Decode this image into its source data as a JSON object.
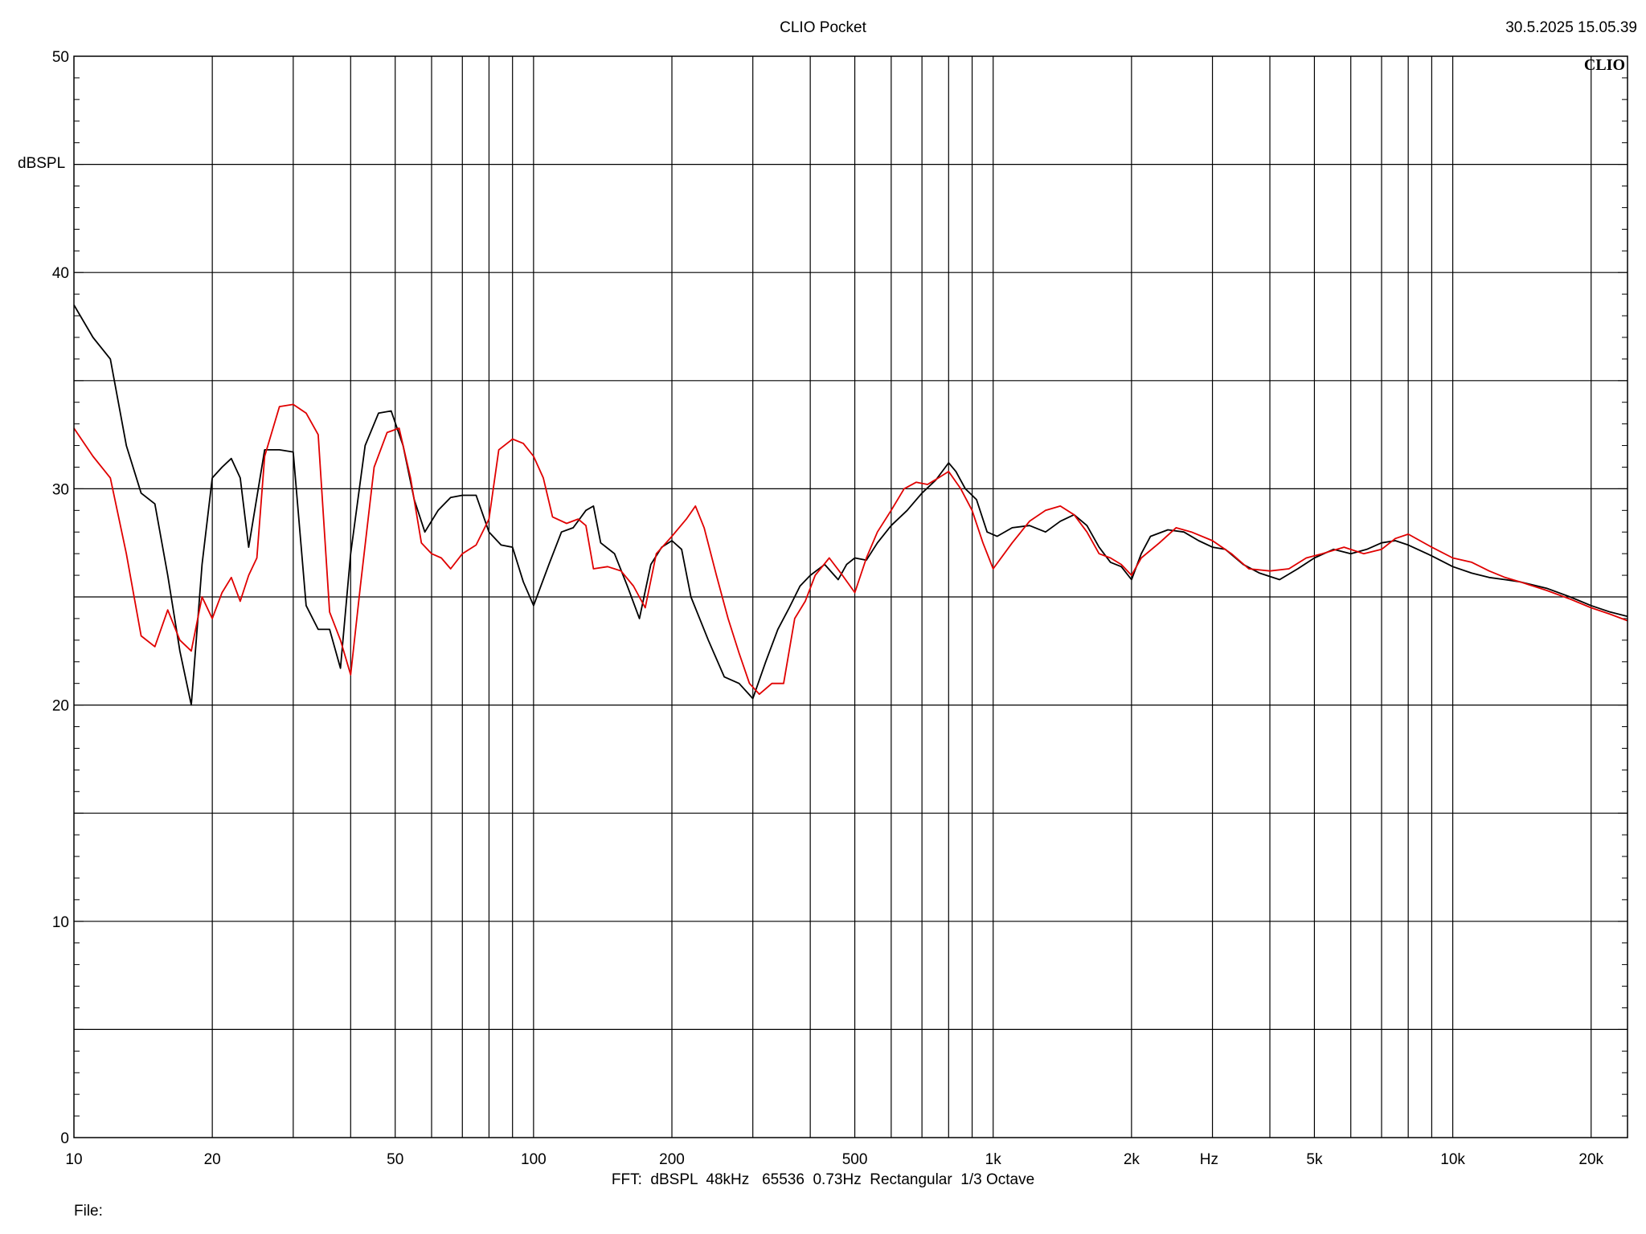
{
  "header": {
    "title": "CLIO Pocket",
    "timestamp": "30.5.2025 15.05.39",
    "logo": "CLIO"
  },
  "footer": {
    "settings": "FFT:  dBSPL  48kHz   65536  0.73Hz  Rectangular  1/3 Octave",
    "file_label": "File:"
  },
  "chart_data": {
    "type": "line",
    "title": "CLIO Pocket",
    "xlabel": "Hz",
    "ylabel": "dBSPL",
    "xscale": "log",
    "xlim": [
      10,
      24000
    ],
    "ylim": [
      0,
      50
    ],
    "grid": true,
    "x_ticks": [
      {
        "value": 10,
        "label": "10"
      },
      {
        "value": 20,
        "label": "20"
      },
      {
        "value": 50,
        "label": "50"
      },
      {
        "value": 100,
        "label": "100"
      },
      {
        "value": 200,
        "label": "200"
      },
      {
        "value": 500,
        "label": "500"
      },
      {
        "value": 1000,
        "label": "1k"
      },
      {
        "value": 2000,
        "label": "2k"
      },
      {
        "value": 5000,
        "label": "5k"
      },
      {
        "value": 10000,
        "label": "10k"
      },
      {
        "value": 20000,
        "label": "20k"
      }
    ],
    "y_ticks": [
      {
        "value": 0,
        "label": "0"
      },
      {
        "value": 10,
        "label": "10"
      },
      {
        "value": 20,
        "label": "20"
      },
      {
        "value": 30,
        "label": "30"
      },
      {
        "value": 40,
        "label": "40"
      },
      {
        "value": 50,
        "label": "50"
      }
    ],
    "series": [
      {
        "color": "#000000",
        "points": [
          [
            10,
            38.5
          ],
          [
            11,
            37.0
          ],
          [
            12,
            36.0
          ],
          [
            13,
            32.0
          ],
          [
            14,
            29.8
          ],
          [
            15,
            29.3
          ],
          [
            16,
            26.0
          ],
          [
            17,
            22.5
          ],
          [
            18,
            20.0
          ],
          [
            19,
            26.5
          ],
          [
            20,
            30.5
          ],
          [
            21,
            31.0
          ],
          [
            22,
            31.4
          ],
          [
            23,
            30.5
          ],
          [
            24,
            27.3
          ],
          [
            26,
            31.8
          ],
          [
            28,
            31.8
          ],
          [
            30,
            31.7
          ],
          [
            32,
            24.6
          ],
          [
            34,
            23.5
          ],
          [
            36,
            23.5
          ],
          [
            38,
            21.7
          ],
          [
            40,
            27.0
          ],
          [
            43,
            32.0
          ],
          [
            46,
            33.5
          ],
          [
            49,
            33.6
          ],
          [
            52,
            32.0
          ],
          [
            55,
            29.5
          ],
          [
            58,
            28.0
          ],
          [
            62,
            29.0
          ],
          [
            66,
            29.6
          ],
          [
            70,
            29.7
          ],
          [
            75,
            29.7
          ],
          [
            80,
            28.0
          ],
          [
            85,
            27.4
          ],
          [
            90,
            27.3
          ],
          [
            95,
            25.7
          ],
          [
            100,
            24.6
          ],
          [
            108,
            26.5
          ],
          [
            115,
            28.0
          ],
          [
            122,
            28.2
          ],
          [
            130,
            29.0
          ],
          [
            135,
            29.2
          ],
          [
            140,
            27.5
          ],
          [
            150,
            27.0
          ],
          [
            160,
            25.5
          ],
          [
            170,
            24.0
          ],
          [
            180,
            26.5
          ],
          [
            190,
            27.3
          ],
          [
            200,
            27.6
          ],
          [
            210,
            27.2
          ],
          [
            220,
            25.0
          ],
          [
            240,
            23.0
          ],
          [
            260,
            21.3
          ],
          [
            280,
            21.0
          ],
          [
            300,
            20.3
          ],
          [
            320,
            22.0
          ],
          [
            340,
            23.5
          ],
          [
            360,
            24.5
          ],
          [
            380,
            25.5
          ],
          [
            400,
            26.0
          ],
          [
            430,
            26.5
          ],
          [
            460,
            25.8
          ],
          [
            480,
            26.5
          ],
          [
            500,
            26.8
          ],
          [
            530,
            26.7
          ],
          [
            560,
            27.5
          ],
          [
            600,
            28.3
          ],
          [
            650,
            29.0
          ],
          [
            700,
            29.8
          ],
          [
            750,
            30.4
          ],
          [
            800,
            31.2
          ],
          [
            830,
            30.8
          ],
          [
            870,
            30.0
          ],
          [
            920,
            29.5
          ],
          [
            970,
            28.0
          ],
          [
            1020,
            27.8
          ],
          [
            1100,
            28.2
          ],
          [
            1200,
            28.3
          ],
          [
            1300,
            28.0
          ],
          [
            1400,
            28.5
          ],
          [
            1500,
            28.8
          ],
          [
            1600,
            28.3
          ],
          [
            1700,
            27.3
          ],
          [
            1800,
            26.6
          ],
          [
            1900,
            26.4
          ],
          [
            2000,
            25.8
          ],
          [
            2100,
            27.0
          ],
          [
            2200,
            27.8
          ],
          [
            2400,
            28.1
          ],
          [
            2600,
            28.0
          ],
          [
            2800,
            27.6
          ],
          [
            3000,
            27.3
          ],
          [
            3200,
            27.2
          ],
          [
            3500,
            26.5
          ],
          [
            3800,
            26.1
          ],
          [
            4200,
            25.8
          ],
          [
            4600,
            26.3
          ],
          [
            5000,
            26.8
          ],
          [
            5500,
            27.2
          ],
          [
            6000,
            27.0
          ],
          [
            6500,
            27.2
          ],
          [
            7000,
            27.5
          ],
          [
            7500,
            27.6
          ],
          [
            8000,
            27.4
          ],
          [
            9000,
            26.9
          ],
          [
            10000,
            26.4
          ],
          [
            11000,
            26.1
          ],
          [
            12000,
            25.9
          ],
          [
            13000,
            25.8
          ],
          [
            14000,
            25.7
          ],
          [
            16000,
            25.4
          ],
          [
            18000,
            25.0
          ],
          [
            20000,
            24.6
          ],
          [
            22000,
            24.3
          ],
          [
            24000,
            24.1
          ]
        ]
      },
      {
        "color": "#e00000",
        "points": [
          [
            10,
            32.8
          ],
          [
            11,
            31.5
          ],
          [
            12,
            30.5
          ],
          [
            13,
            27.0
          ],
          [
            14,
            23.2
          ],
          [
            15,
            22.7
          ],
          [
            16,
            24.4
          ],
          [
            17,
            23.0
          ],
          [
            18,
            22.5
          ],
          [
            19,
            25.0
          ],
          [
            20,
            24.0
          ],
          [
            21,
            25.2
          ],
          [
            22,
            25.9
          ],
          [
            23,
            24.8
          ],
          [
            24,
            26.0
          ],
          [
            25,
            26.8
          ],
          [
            26,
            31.5
          ],
          [
            28,
            33.8
          ],
          [
            30,
            33.9
          ],
          [
            32,
            33.5
          ],
          [
            34,
            32.5
          ],
          [
            36,
            24.3
          ],
          [
            38,
            23.0
          ],
          [
            40,
            21.4
          ],
          [
            42,
            25.5
          ],
          [
            45,
            31.0
          ],
          [
            48,
            32.6
          ],
          [
            51,
            32.8
          ],
          [
            54,
            30.5
          ],
          [
            57,
            27.5
          ],
          [
            60,
            27.0
          ],
          [
            63,
            26.8
          ],
          [
            66,
            26.3
          ],
          [
            70,
            27.0
          ],
          [
            75,
            27.4
          ],
          [
            80,
            28.6
          ],
          [
            84,
            31.8
          ],
          [
            90,
            32.3
          ],
          [
            95,
            32.1
          ],
          [
            100,
            31.5
          ],
          [
            105,
            30.5
          ],
          [
            110,
            28.7
          ],
          [
            118,
            28.4
          ],
          [
            125,
            28.6
          ],
          [
            130,
            28.3
          ],
          [
            135,
            26.3
          ],
          [
            145,
            26.4
          ],
          [
            155,
            26.2
          ],
          [
            165,
            25.5
          ],
          [
            175,
            24.5
          ],
          [
            185,
            27.0
          ],
          [
            200,
            27.8
          ],
          [
            215,
            28.6
          ],
          [
            225,
            29.2
          ],
          [
            235,
            28.2
          ],
          [
            250,
            26.0
          ],
          [
            265,
            24.0
          ],
          [
            280,
            22.4
          ],
          [
            295,
            21.0
          ],
          [
            310,
            20.5
          ],
          [
            330,
            21.0
          ],
          [
            350,
            21.0
          ],
          [
            370,
            24.0
          ],
          [
            390,
            24.8
          ],
          [
            410,
            26.0
          ],
          [
            440,
            26.8
          ],
          [
            470,
            26.0
          ],
          [
            500,
            25.2
          ],
          [
            530,
            26.8
          ],
          [
            560,
            28.0
          ],
          [
            600,
            29.0
          ],
          [
            640,
            30.0
          ],
          [
            680,
            30.3
          ],
          [
            720,
            30.2
          ],
          [
            760,
            30.5
          ],
          [
            800,
            30.8
          ],
          [
            850,
            30.0
          ],
          [
            900,
            29.0
          ],
          [
            950,
            27.5
          ],
          [
            1000,
            26.3
          ],
          [
            1100,
            27.5
          ],
          [
            1200,
            28.5
          ],
          [
            1300,
            29.0
          ],
          [
            1400,
            29.2
          ],
          [
            1500,
            28.8
          ],
          [
            1600,
            28.0
          ],
          [
            1700,
            27.0
          ],
          [
            1800,
            26.8
          ],
          [
            1900,
            26.5
          ],
          [
            2000,
            26.0
          ],
          [
            2100,
            26.8
          ],
          [
            2300,
            27.5
          ],
          [
            2500,
            28.2
          ],
          [
            2700,
            28.0
          ],
          [
            3000,
            27.6
          ],
          [
            3300,
            27.0
          ],
          [
            3600,
            26.3
          ],
          [
            4000,
            26.2
          ],
          [
            4400,
            26.3
          ],
          [
            4800,
            26.8
          ],
          [
            5200,
            27.0
          ],
          [
            5800,
            27.3
          ],
          [
            6400,
            27.0
          ],
          [
            7000,
            27.2
          ],
          [
            7500,
            27.7
          ],
          [
            8000,
            27.9
          ],
          [
            9000,
            27.3
          ],
          [
            10000,
            26.8
          ],
          [
            11000,
            26.6
          ],
          [
            12000,
            26.2
          ],
          [
            13000,
            25.9
          ],
          [
            14000,
            25.7
          ],
          [
            16000,
            25.3
          ],
          [
            18000,
            24.9
          ],
          [
            20000,
            24.5
          ],
          [
            22000,
            24.2
          ],
          [
            24000,
            23.9
          ]
        ]
      }
    ]
  }
}
